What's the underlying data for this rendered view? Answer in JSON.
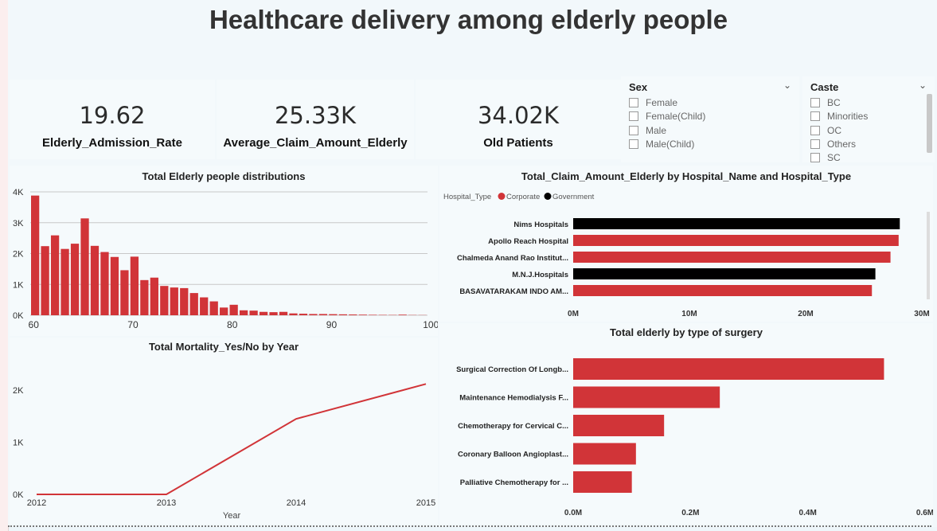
{
  "title": "Healthcare delivery among elderly people",
  "kpis": [
    {
      "value": "19.62",
      "label": "Elderly_Admission_Rate"
    },
    {
      "value": "25.33K",
      "label": "Average_Claim_Amount_Elderly"
    },
    {
      "value": "34.02K",
      "label": "Old Patients"
    }
  ],
  "slicers": {
    "sex": {
      "title": "Sex",
      "items": [
        "Female",
        "Female(Child)",
        "Male",
        "Male(Child)"
      ]
    },
    "caste": {
      "title": "Caste",
      "items": [
        "BC",
        "Minorities",
        "OC",
        "Others",
        "SC"
      ]
    }
  },
  "colors": {
    "corporate": "#d13438",
    "government": "#000000",
    "bar": "#d13438",
    "grid": "#c8c8c8"
  },
  "chart_data": [
    {
      "type": "bar",
      "title": "Total Elderly people distributions",
      "xlabel": "",
      "ylabel": "",
      "x_ticks": [
        60,
        70,
        80,
        90,
        100
      ],
      "y_ticks": [
        "0K",
        "1K",
        "2K",
        "3K",
        "4K"
      ],
      "ylim": [
        0,
        4000
      ],
      "x": [
        60,
        61,
        62,
        63,
        64,
        65,
        66,
        67,
        68,
        69,
        70,
        71,
        72,
        73,
        74,
        75,
        76,
        77,
        78,
        79,
        80,
        81,
        82,
        83,
        84,
        85,
        86,
        87,
        88,
        89,
        90,
        91,
        92,
        93,
        94,
        95,
        96,
        97,
        98,
        99
      ],
      "values": [
        3880,
        2240,
        2590,
        2150,
        2320,
        3140,
        2250,
        2050,
        1890,
        1460,
        1900,
        1140,
        1220,
        950,
        900,
        880,
        720,
        580,
        450,
        250,
        340,
        160,
        150,
        110,
        100,
        110,
        60,
        50,
        40,
        40,
        35,
        30,
        25,
        20,
        15,
        12,
        10,
        20,
        8,
        6
      ]
    },
    {
      "type": "bar",
      "title": "Total_Claim_Amount_Elderly by Hospital_Name and Hospital_Type",
      "legend_title": "Hospital_Type",
      "legend": [
        "Corporate",
        "Government"
      ],
      "categories": [
        "Nims Hospitals",
        "Apollo Reach Hospital",
        "Chalmeda Anand Rao Institut...",
        "M.N.J.Hospitals",
        "BASAVATARAKAM INDO AM..."
      ],
      "values": [
        28.1,
        28.0,
        27.3,
        26.0,
        25.7
      ],
      "types": [
        "Government",
        "Corporate",
        "Corporate",
        "Government",
        "Corporate"
      ],
      "x_ticks": [
        "0M",
        "10M",
        "20M",
        "30M"
      ],
      "xlim": [
        0,
        30
      ]
    },
    {
      "type": "line",
      "title": "Total Mortality_Yes/No by Year",
      "xlabel": "Year",
      "x": [
        "2012",
        "2013",
        "2014",
        "2015"
      ],
      "values": [
        0,
        0,
        1450,
        2120
      ],
      "y_ticks": [
        "0K",
        "1K",
        "2K"
      ],
      "ylim": [
        0,
        2000
      ]
    },
    {
      "type": "bar",
      "title": "Total elderly by type of surgery",
      "categories": [
        "Surgical Correction Of Longb...",
        "Maintenance Hemodialysis F...",
        "Chemotherapy for Cervical C...",
        "Coronary Balloon Angioplast...",
        "Palliative Chemotherapy for ..."
      ],
      "values": [
        0.53,
        0.25,
        0.155,
        0.107,
        0.1
      ],
      "x_ticks": [
        "0.0M",
        "0.2M",
        "0.4M",
        "0.6M"
      ],
      "xlim": [
        0,
        0.6
      ]
    }
  ]
}
